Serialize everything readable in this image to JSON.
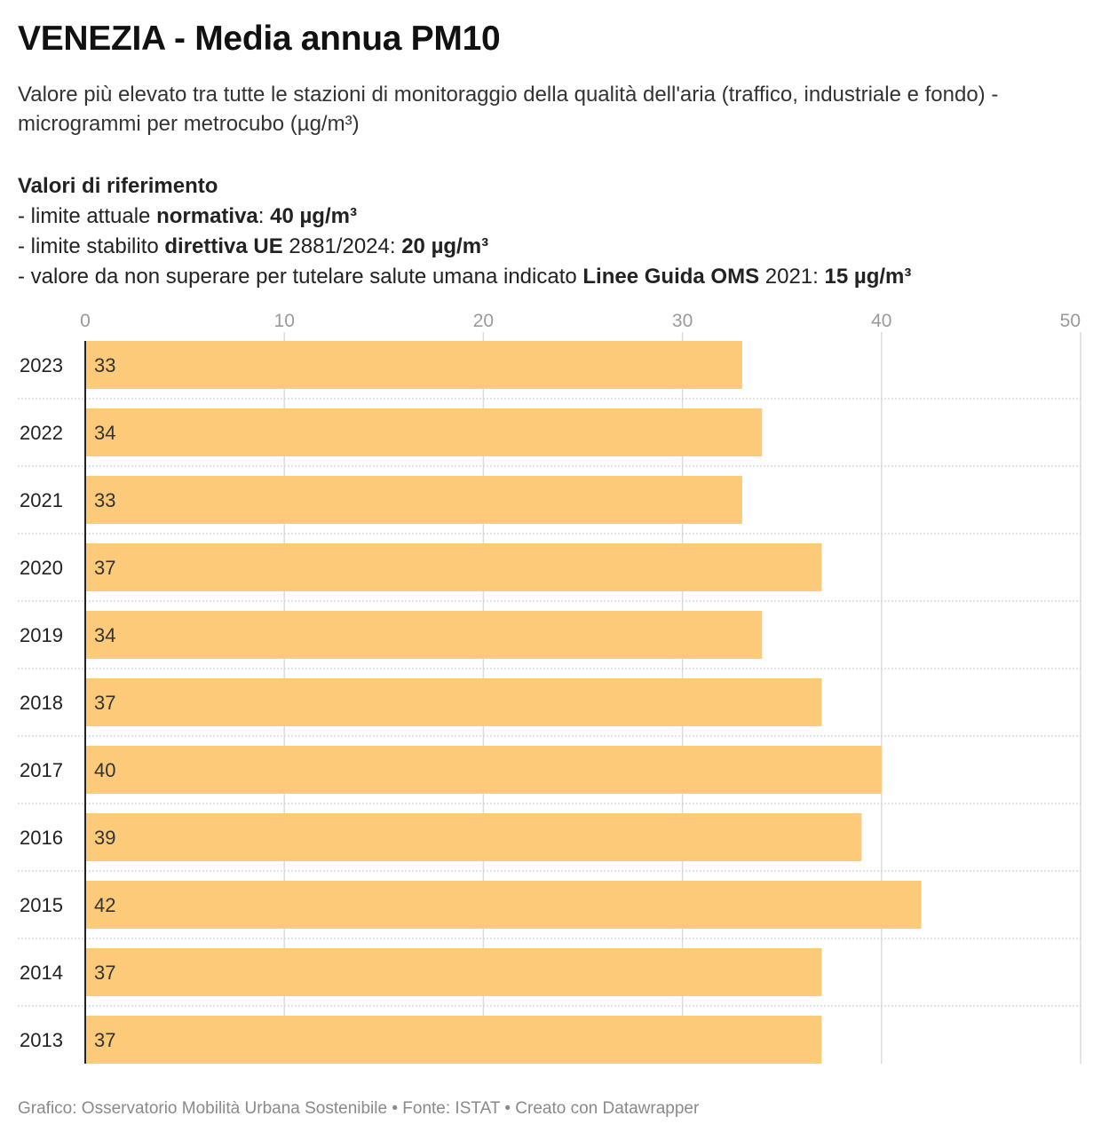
{
  "header": {
    "title": "VENEZIA - Media annua PM10",
    "subtitle": "Valore più elevato tra tutte le stazioni di monitoraggio della qualità dell'aria (traffico, industriale e fondo) - microgrammi per metrocubo (µg/m³)"
  },
  "references": {
    "heading": "Valori di riferimento",
    "line1": {
      "pre": "- limite attuale ",
      "bold1": "normativa",
      "mid": ": ",
      "bold2": "40 µg/m³"
    },
    "line2": {
      "pre": "- limite stabilito ",
      "bold1": "direttiva UE",
      "mid": " 2881/2024: ",
      "bold2": "20 µg/m³"
    },
    "line3": {
      "pre": "- valore da non superare per tutelare salute umana indicato ",
      "bold1": "Linee Guida OMS",
      "mid": " 2021: ",
      "bold2": "15 µg/m³"
    }
  },
  "chart_data": {
    "type": "bar",
    "orientation": "horizontal",
    "categories": [
      "2023",
      "2022",
      "2021",
      "2020",
      "2019",
      "2018",
      "2017",
      "2016",
      "2015",
      "2014",
      "2013"
    ],
    "values": [
      33,
      34,
      33,
      37,
      34,
      37,
      40,
      39,
      42,
      37,
      37
    ],
    "xlim": [
      0,
      50
    ],
    "xticks": [
      0,
      10,
      20,
      30,
      40,
      50
    ],
    "grid": true,
    "bar_color": "#fdca7a"
  },
  "footer": {
    "text": "Grafico: Osservatorio Mobilità Urbana Sostenibile • Fonte: ISTAT • Creato con Datawrapper"
  }
}
